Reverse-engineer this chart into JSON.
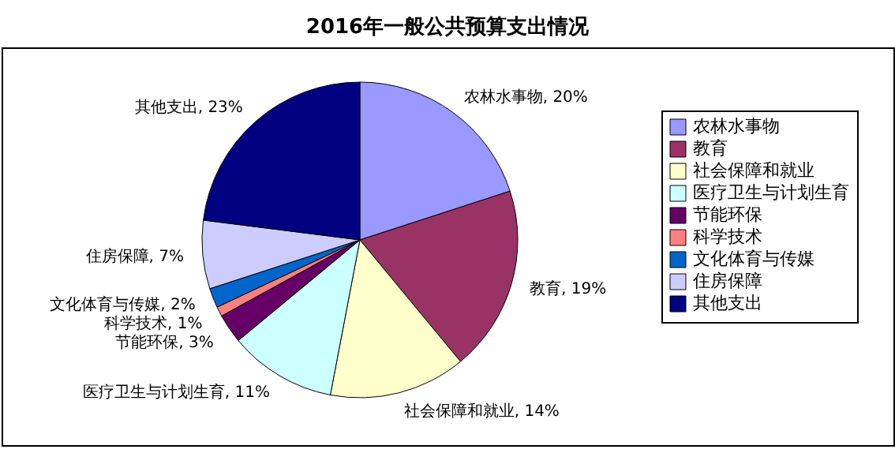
{
  "chart_data": {
    "type": "pie",
    "title": "2016年一般公共预算支出情况",
    "categories": [
      "农林水事物",
      "教育",
      "社会保障和就业",
      "医疗卫生与计划生育",
      "节能环保",
      "科学技术",
      "文化体育与传媒",
      "住房保障",
      "其他支出"
    ],
    "values": [
      20,
      19,
      14,
      11,
      3,
      1,
      2,
      7,
      23
    ],
    "colors": [
      "#9999ff",
      "#993366",
      "#ffffcc",
      "#ccffff",
      "#660066",
      "#ff8080",
      "#0066cc",
      "#ccccff",
      "#000080"
    ],
    "value_labels": [
      "农林水事物, 20%",
      "教育, 19%",
      "社会保障和就业, 14%",
      "医疗卫生与计划生育, 11%",
      "节能环保, 3%",
      "科学技术, 1%",
      "文化体育与传媒, 2%",
      "住房保障, 7%",
      "其他支出, 23%"
    ],
    "legend": "right"
  }
}
